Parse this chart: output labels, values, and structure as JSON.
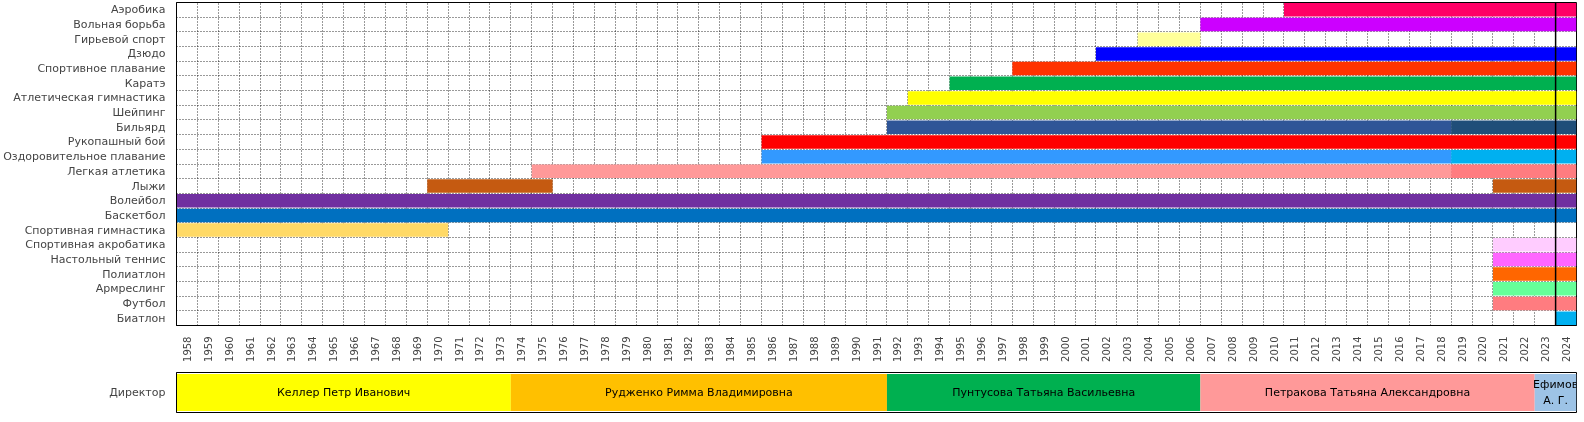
{
  "chart_data": [
    {
      "type": "bar",
      "orientation": "horizontal",
      "grid": true,
      "categories": [
        "Аэробика",
        "Вольная борьба",
        "Гирьевой спорт",
        "Дзюдо",
        "Спортивное плавание",
        "Каратэ",
        "Атлетическая гимнастика",
        "Шейпинг",
        "Бильярд",
        "Рукопашный бой",
        "Оздоровительное плавание",
        "Легкая атлетика",
        "Лыжи",
        "Волейбол",
        "Баскетбол",
        "Спортивная гимнастика",
        "Спортивная акробатика",
        "Настольный теннис",
        "Полиатлон",
        "Армреслинг",
        "Футбол",
        "Биатлон"
      ],
      "xlim": [
        1958,
        2025
      ],
      "xticks": [
        {
          "value": 1958.5,
          "label": "1958"
        },
        {
          "value": 1959.5,
          "label": "1959"
        },
        {
          "value": 1960.5,
          "label": "1960"
        },
        {
          "value": 1961.5,
          "label": "1961"
        },
        {
          "value": 1962.5,
          "label": "1962"
        },
        {
          "value": 1963.5,
          "label": "1963"
        },
        {
          "value": 1964.5,
          "label": "1964"
        },
        {
          "value": 1965.5,
          "label": "1965"
        },
        {
          "value": 1966.5,
          "label": "1966"
        },
        {
          "value": 1967.5,
          "label": "1967"
        },
        {
          "value": 1968.5,
          "label": "1968"
        },
        {
          "value": 1969.5,
          "label": "1969"
        },
        {
          "value": 1970.5,
          "label": "1970"
        },
        {
          "value": 1971.5,
          "label": "1971"
        },
        {
          "value": 1972.5,
          "label": "1972"
        },
        {
          "value": 1973.5,
          "label": "1973"
        },
        {
          "value": 1974.5,
          "label": "1974"
        },
        {
          "value": 1975.5,
          "label": "1975"
        },
        {
          "value": 1976.5,
          "label": "1976"
        },
        {
          "value": 1977.5,
          "label": "1977"
        },
        {
          "value": 1978.5,
          "label": "1978"
        },
        {
          "value": 1979.5,
          "label": "1979"
        },
        {
          "value": 1980.5,
          "label": "1980"
        },
        {
          "value": 1981.5,
          "label": "1981"
        },
        {
          "value": 1982.5,
          "label": "1982"
        },
        {
          "value": 1983.5,
          "label": "1983"
        },
        {
          "value": 1984.5,
          "label": "1984"
        },
        {
          "value": 1985.5,
          "label": "1985"
        },
        {
          "value": 1986.5,
          "label": "1986"
        },
        {
          "value": 1987.5,
          "label": "1987"
        },
        {
          "value": 1988.5,
          "label": "1988"
        },
        {
          "value": 1989.5,
          "label": "1989"
        },
        {
          "value": 1990.5,
          "label": "1990"
        },
        {
          "value": 1991.5,
          "label": "1991"
        },
        {
          "value": 1992.5,
          "label": "1992"
        },
        {
          "value": 1993.5,
          "label": "1993"
        },
        {
          "value": 1994.5,
          "label": "1994"
        },
        {
          "value": 1995.5,
          "label": "1995"
        },
        {
          "value": 1996.5,
          "label": "1996"
        },
        {
          "value": 1997.5,
          "label": "1997"
        },
        {
          "value": 1998.5,
          "label": "1998"
        },
        {
          "value": 1999.5,
          "label": "1999"
        },
        {
          "value": 2000.5,
          "label": "2000"
        },
        {
          "value": 2001.5,
          "label": "2001"
        },
        {
          "value": 2002.5,
          "label": "2002"
        },
        {
          "value": 2003.5,
          "label": "2003"
        },
        {
          "value": 2004.5,
          "label": "2004"
        },
        {
          "value": 2005.5,
          "label": "2005"
        },
        {
          "value": 2006.5,
          "label": "2006"
        },
        {
          "value": 2007.5,
          "label": "2007"
        },
        {
          "value": 2008.5,
          "label": "2008"
        },
        {
          "value": 2009.5,
          "label": "2009"
        },
        {
          "value": 2010.5,
          "label": "2010"
        },
        {
          "value": 2011.5,
          "label": "2011"
        },
        {
          "value": 2012.5,
          "label": "2012"
        },
        {
          "value": 2013.5,
          "label": "2013"
        },
        {
          "value": 2014.5,
          "label": "2014"
        },
        {
          "value": 2015.5,
          "label": "2015"
        },
        {
          "value": 2016.5,
          "label": "2016"
        },
        {
          "value": 2017.5,
          "label": "2017"
        },
        {
          "value": 2018.5,
          "label": "2018"
        },
        {
          "value": 2019.5,
          "label": "2019"
        },
        {
          "value": 2020.5,
          "label": "2020"
        },
        {
          "value": 2021.5,
          "label": "2021"
        },
        {
          "value": 2022.5,
          "label": "2022"
        },
        {
          "value": 2023.5,
          "label": "2023"
        },
        {
          "value": 2024.5,
          "label": "2024"
        }
      ],
      "series": [
        {
          "base": [
            2011,
            2007,
            2004,
            2002,
            1998,
            1995,
            1993,
            1992,
            1992,
            1986,
            1986,
            1975,
            1970,
            1958,
            1958,
            1958,
            2021,
            2021,
            2021,
            2021,
            2021,
            2024
          ],
          "values": [
            14,
            18,
            3,
            23,
            27,
            30,
            32,
            33,
            27,
            39,
            33,
            44,
            6,
            67,
            67,
            13,
            4,
            4,
            4,
            4,
            4,
            1
          ],
          "colors": [
            "#ff0066",
            "#cc00ff",
            "#ffff99",
            "#0000ff",
            "#ff3300",
            "#00b050",
            "#ffff00",
            "#92d050",
            "#2f5597",
            "#ff0000",
            "#3399ff",
            "#ff9999",
            "#c55a11",
            "#7030a0",
            "#0070c0",
            "#ffd966",
            "#ffccff",
            "#ff66ff",
            "#ff6600",
            "#66ff99",
            "#ff7c80",
            "#00b0f0"
          ]
        },
        {
          "base": [
            null,
            null,
            null,
            null,
            null,
            null,
            null,
            null,
            2019,
            null,
            2019,
            2019,
            2021,
            null,
            null,
            null,
            null,
            null,
            null,
            null,
            null,
            null
          ],
          "values": [
            null,
            null,
            null,
            null,
            null,
            null,
            null,
            null,
            6,
            null,
            6,
            6,
            4,
            null,
            null,
            null,
            null,
            null,
            null,
            null,
            null,
            null
          ],
          "colors": [
            null,
            null,
            null,
            null,
            null,
            null,
            null,
            null,
            "#1f4e79",
            null,
            "#00b0f0",
            "#ff7c80",
            "#c55a11",
            null,
            null,
            null,
            null,
            null,
            null,
            null,
            null,
            null
          ]
        }
      ],
      "ref_lines": [
        {
          "axis": "x",
          "value": 2024,
          "color": "#000000"
        }
      ]
    },
    {
      "type": "bar",
      "orientation": "horizontal",
      "categories": [
        "Директор"
      ],
      "xlim": [
        1958,
        2025
      ],
      "tick_labels": "y",
      "series": [
        {
          "color": "#ffff00",
          "base": [
            1958
          ],
          "values": [
            16
          ],
          "value_labels": [
            "Келлер Петр Иванович"
          ]
        },
        {
          "color": "#ffc000",
          "base": [
            1974
          ],
          "values": [
            18
          ],
          "value_labels": [
            "Рудженко Римма Владимировна"
          ]
        },
        {
          "color": "#00b050",
          "base": [
            1992
          ],
          "values": [
            15
          ],
          "value_labels": [
            "Пунтусова Татьяна Васильевна"
          ]
        },
        {
          "color": "#ff9999",
          "base": [
            2007
          ],
          "values": [
            16
          ],
          "value_labels": [
            "Петракова Татьяна Александровна"
          ]
        },
        {
          "color": "#9dc3e6",
          "base": [
            2023
          ],
          "values": [
            2
          ],
          "value_labels": [
            "Ефимов А. Г."
          ]
        }
      ]
    }
  ]
}
